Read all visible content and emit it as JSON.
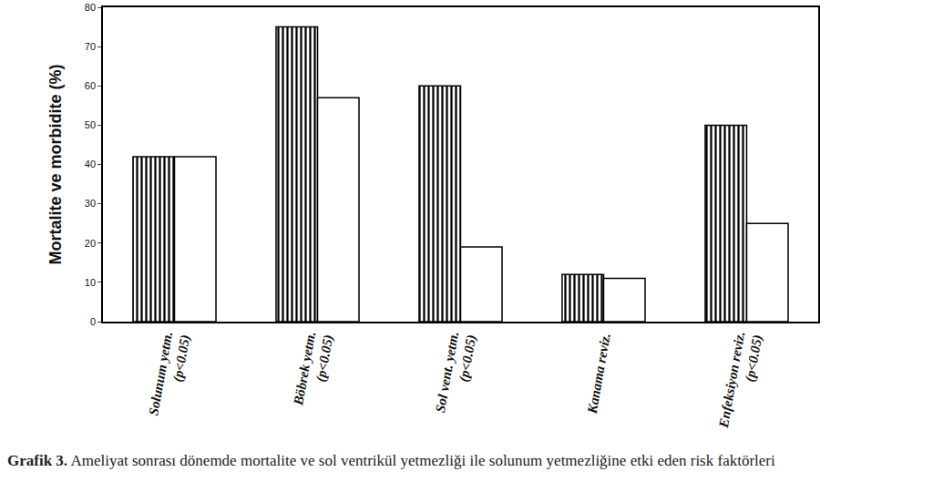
{
  "chart_data": {
    "type": "bar",
    "title": "Grafik 3. Ameliyat sonrası dönemde mortalite ve sol ventrikül yetmezliği ile solunum yetmezliğine etki eden risk faktörleri",
    "y_label": "Mortalite ve morbidite (%)",
    "categories": [
      "Solunum yetm.\n(p<0.05)",
      "Böbrek yetm.\n(p<0.05)",
      "Sol vent. yetm.\n(p<0.05)",
      "Kanama reviz.",
      "Enfeksiyon reviz.\n(p<0.05)"
    ],
    "series": [
      {
        "color": "#ffffff",
        "marker": "vertical_stripes",
        "values": [
          42,
          75,
          60,
          12,
          50
        ]
      },
      {
        "color": "#ffffff",
        "values": [
          42,
          57,
          19,
          11,
          25
        ]
      }
    ],
    "ylim": [
      0,
      80
    ],
    "yticks": [
      0,
      10,
      20,
      30,
      40,
      50,
      60,
      70,
      80
    ],
    "grid": false
  }
}
